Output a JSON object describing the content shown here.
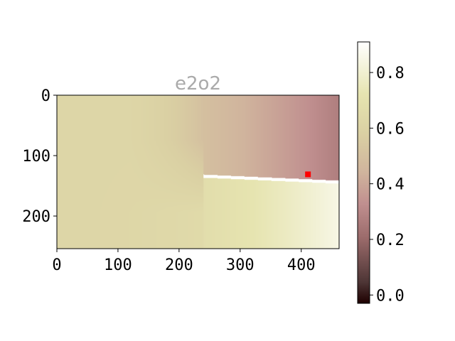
{
  "chart_data": {
    "type": "heatmap",
    "title": "e2o2",
    "xlabel": "",
    "ylabel": "",
    "x_ticks": [
      0,
      100,
      200,
      300,
      400
    ],
    "y_ticks": [
      0,
      100,
      200
    ],
    "xlim": [
      0,
      462
    ],
    "ylim": [
      254,
      0
    ],
    "grid": false,
    "colormap": "pink",
    "colorbar": {
      "ticks": [
        "0.0",
        "0.2",
        "0.4",
        "0.6",
        "0.8"
      ],
      "range": [
        -0.03,
        0.91
      ]
    },
    "field": {
      "description_values": [
        {
          "region": "left",
          "x": 0,
          "value": 0.62
        },
        {
          "region": "upper-right corner",
          "x": 462,
          "y": 0,
          "value": 0.27
        },
        {
          "region": "lower-right corner",
          "x": 462,
          "y": 254,
          "value": 0.85
        }
      ],
      "discontinuity": {
        "start": [
          240,
          133
        ],
        "end": [
          462,
          143
        ],
        "color": "#ffffff"
      }
    },
    "marker": {
      "x": 411,
      "y": 131,
      "color": "#ff0000"
    }
  }
}
